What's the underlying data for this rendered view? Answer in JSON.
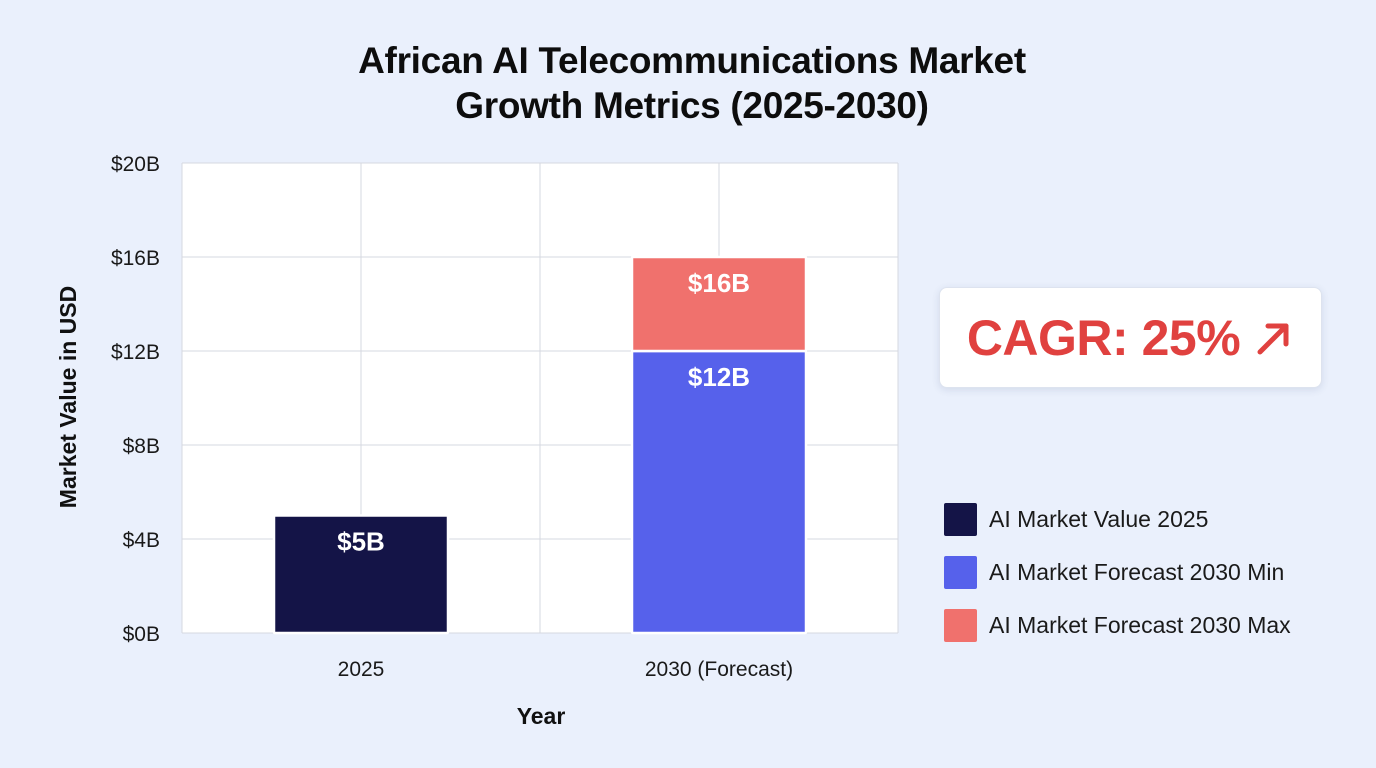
{
  "chart_data": {
    "type": "bar",
    "stacked": true,
    "title_lines": [
      "African AI Telecommunications Market",
      "Growth Metrics (2025-2030)"
    ],
    "xlabel": "Year",
    "ylabel": "Market Value in USD",
    "categories": [
      "2025",
      "2030 (Forecast)"
    ],
    "ylim": [
      0,
      20
    ],
    "yticks": [
      0,
      4,
      8,
      12,
      16,
      20
    ],
    "ytick_labels": [
      "$0B",
      "$4B",
      "$8B",
      "$12B",
      "$16B",
      "$20B"
    ],
    "grid": true,
    "legend_position": "right",
    "series": [
      {
        "name": "AI Market Value 2025",
        "color": "#141447",
        "values": [
          5,
          0
        ],
        "data_labels": [
          "$5B",
          ""
        ]
      },
      {
        "name": "AI Market Forecast 2030 Min",
        "color": "#5661eb",
        "values": [
          0,
          12
        ],
        "data_labels": [
          "",
          "$12B"
        ]
      },
      {
        "name": "AI Market Forecast 2030 Max",
        "color": "#f0716d",
        "values": [
          0,
          4
        ],
        "data_labels": [
          "",
          "$16B"
        ]
      }
    ],
    "annotation": {
      "text": "CAGR: 25%",
      "icon": "arrow-up-right-icon",
      "color": "#e0413f"
    }
  }
}
